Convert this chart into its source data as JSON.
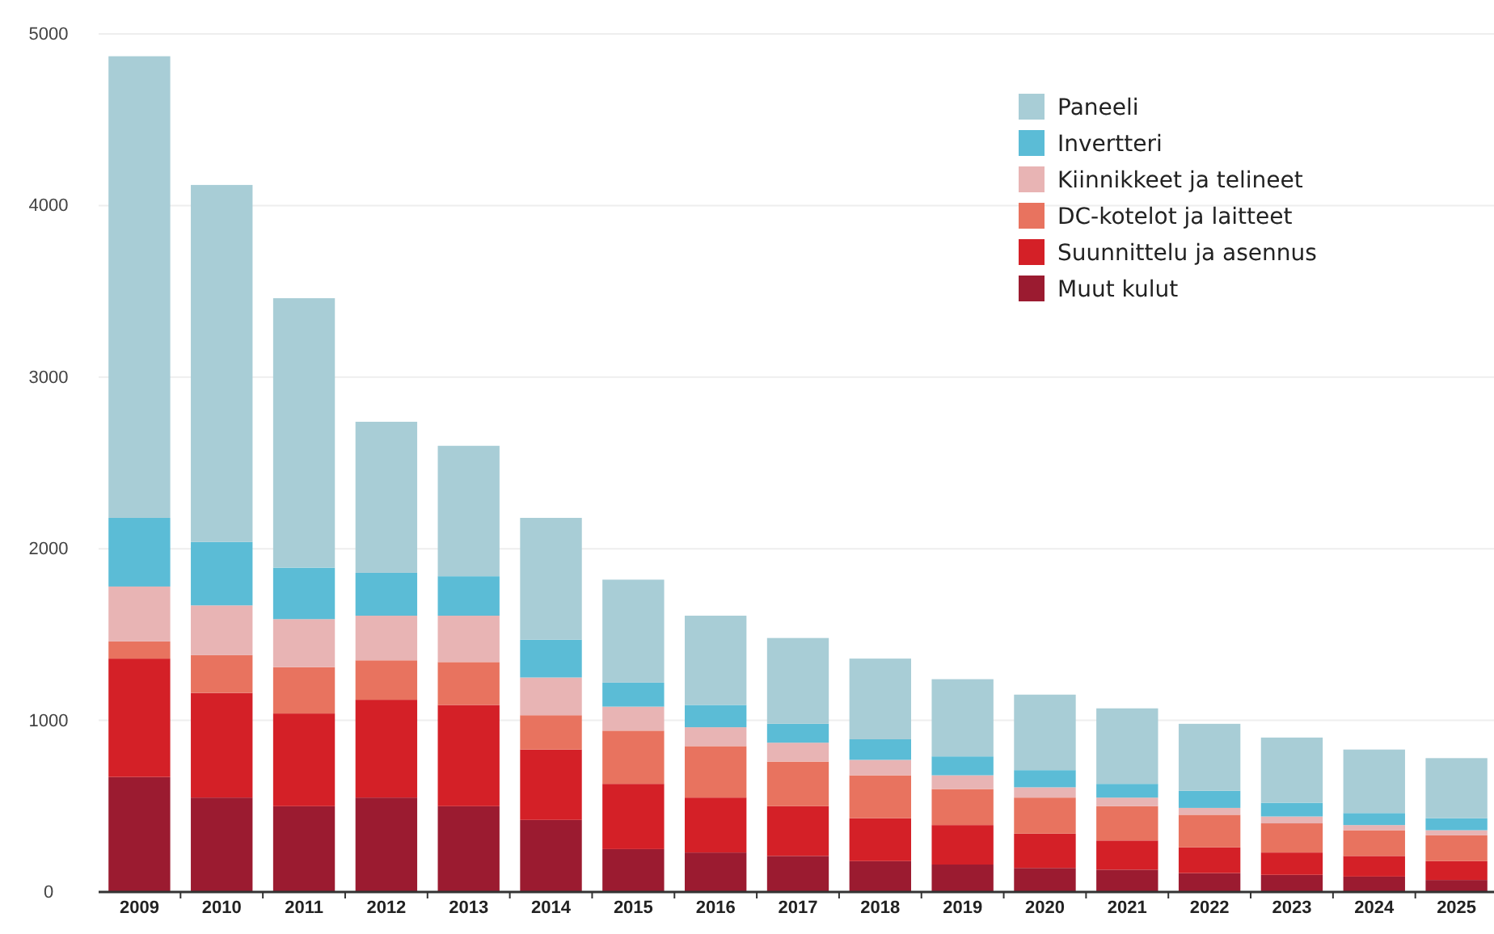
{
  "chart_data": {
    "type": "bar",
    "stacked": true,
    "categories": [
      "2009",
      "2010",
      "2011",
      "2012",
      "2013",
      "2014",
      "2015",
      "2016",
      "2017",
      "2018",
      "2019",
      "2020",
      "2021",
      "2022",
      "2023",
      "2024",
      "2025"
    ],
    "series": [
      {
        "name": "Muut kulut",
        "color": "#9b1b30",
        "values": [
          670,
          550,
          500,
          550,
          500,
          420,
          250,
          230,
          210,
          180,
          160,
          140,
          130,
          110,
          100,
          90,
          70
        ]
      },
      {
        "name": "Suunnittelu ja asennus",
        "color": "#d42027",
        "values": [
          690,
          610,
          540,
          570,
          590,
          410,
          380,
          320,
          290,
          250,
          230,
          200,
          170,
          150,
          130,
          120,
          110
        ]
      },
      {
        "name": "DC-kotelot ja laitteet",
        "color": "#e8735f",
        "values": [
          100,
          220,
          270,
          230,
          250,
          200,
          310,
          300,
          260,
          250,
          210,
          210,
          200,
          190,
          170,
          150,
          150
        ]
      },
      {
        "name": "Kiinnikkeet ja telineet",
        "color": "#e8b4b4",
        "values": [
          320,
          290,
          280,
          260,
          270,
          220,
          140,
          110,
          110,
          90,
          80,
          60,
          50,
          40,
          40,
          30,
          30
        ]
      },
      {
        "name": "Invertteri",
        "color": "#5bbcd6",
        "values": [
          400,
          370,
          300,
          250,
          230,
          220,
          140,
          130,
          110,
          120,
          110,
          100,
          80,
          100,
          80,
          70,
          70
        ]
      },
      {
        "name": "Paneeli",
        "color": "#a8cdd6",
        "values": [
          2690,
          2080,
          1570,
          880,
          760,
          710,
          600,
          520,
          500,
          470,
          450,
          440,
          440,
          390,
          380,
          370,
          350
        ]
      }
    ],
    "ylim": [
      0,
      5000
    ],
    "yticks": [
      0,
      1000,
      2000,
      3000,
      4000,
      5000
    ],
    "grid": "y",
    "legend": "top right"
  }
}
